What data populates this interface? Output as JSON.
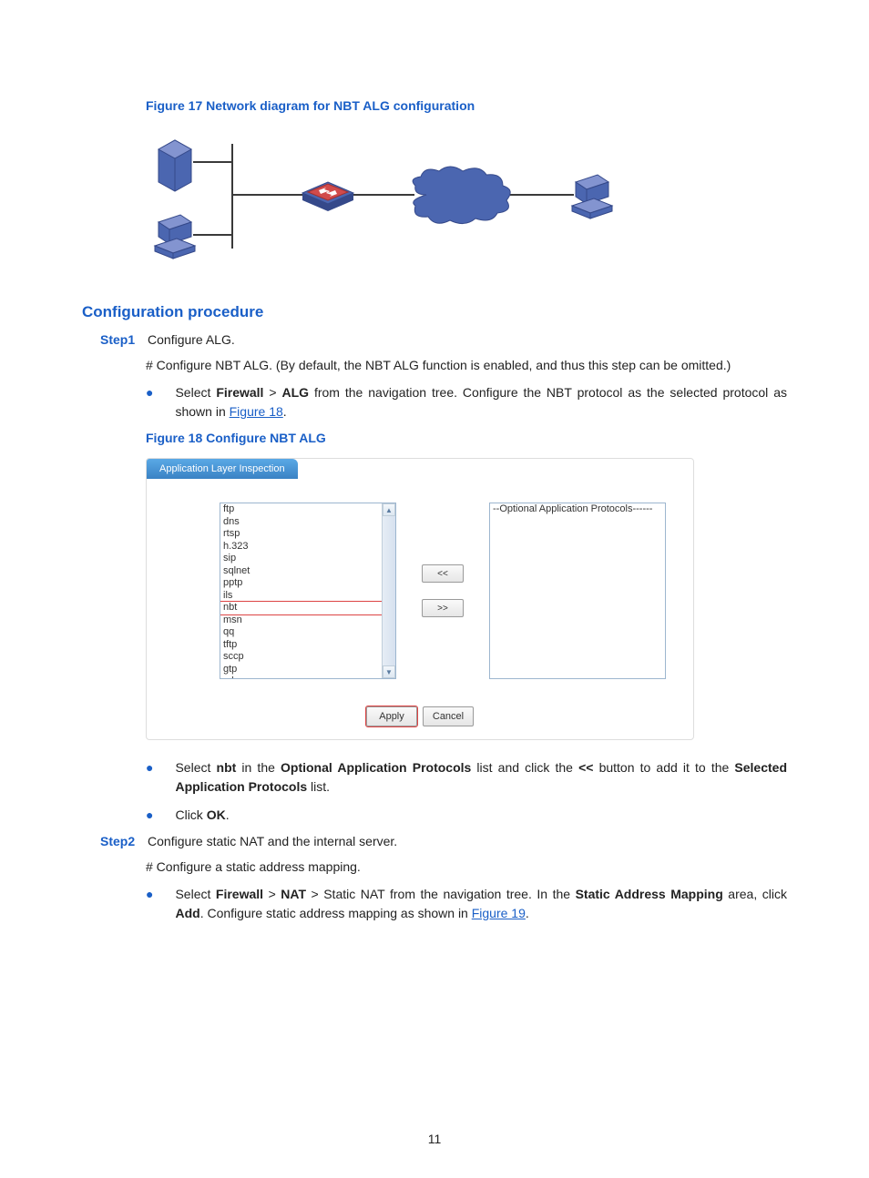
{
  "figure17": {
    "caption": "Figure 17 Network diagram for NBT ALG configuration",
    "colors": {
      "device_fill": "#4b66b0",
      "device_stroke": "#35498a",
      "device_light": "#8394d0",
      "line": "#3a3a3a",
      "router_red": "#d14b4b",
      "cloud_fill": "#4b66b0"
    }
  },
  "section_heading": "Configuration procedure",
  "step1": {
    "label": "Step1",
    "text": "Configure ALG."
  },
  "hash1": "# Configure NBT ALG. (By default, the NBT ALG function is enabled, and thus this step can be omitted.)",
  "bullet1": {
    "pre": "Select ",
    "b1": "Firewall",
    "gt": " > ",
    "b2": "ALG",
    "post": " from the navigation tree. Configure the NBT protocol as the selected protocol as shown in ",
    "link": "Figure 18",
    "end": "."
  },
  "figure18": {
    "caption": "Figure 18 Configure NBT ALG",
    "tab_label": "Application Layer Inspection",
    "left_items": [
      "ftp",
      "dns",
      "rtsp",
      "h.323",
      "sip",
      "sqlnet",
      "pptp",
      "ils",
      "nbt",
      "msn",
      "qq",
      "tftp",
      "sccp",
      "gtp",
      "xdmcp"
    ],
    "highlighted_item": "nbt",
    "right_placeholder": "--Optional Application Protocols------",
    "btn_left": "<<",
    "btn_right": ">>",
    "apply": "Apply",
    "cancel": "Cancel"
  },
  "bullet2": {
    "pre": "Select ",
    "b1": "nbt",
    "mid1": " in the ",
    "b2": "Optional Application Protocols",
    "mid2": " list and click the ",
    "b3": "<<",
    "mid3": " button to add it to the ",
    "b4": "Selected Application Protocols",
    "end": " list."
  },
  "bullet3": {
    "pre": "Click ",
    "b1": "OK",
    "end": "."
  },
  "step2": {
    "label": "Step2",
    "text": "Configure static NAT and the internal server."
  },
  "hash2": "# Configure a static address mapping.",
  "bullet4": {
    "pre": "Select ",
    "b1": "Firewall",
    "gt1": " > ",
    "b2": "NAT",
    "gt2": " > ",
    "t1": "Static NAT",
    "mid1": " from the navigation tree. In the ",
    "b3": "Static Address Mapping",
    "mid2": " area, click ",
    "b4": "Add",
    "mid3": ". Configure static address mapping as shown in ",
    "link": "Figure 19",
    "end": "."
  },
  "page_number": "11"
}
